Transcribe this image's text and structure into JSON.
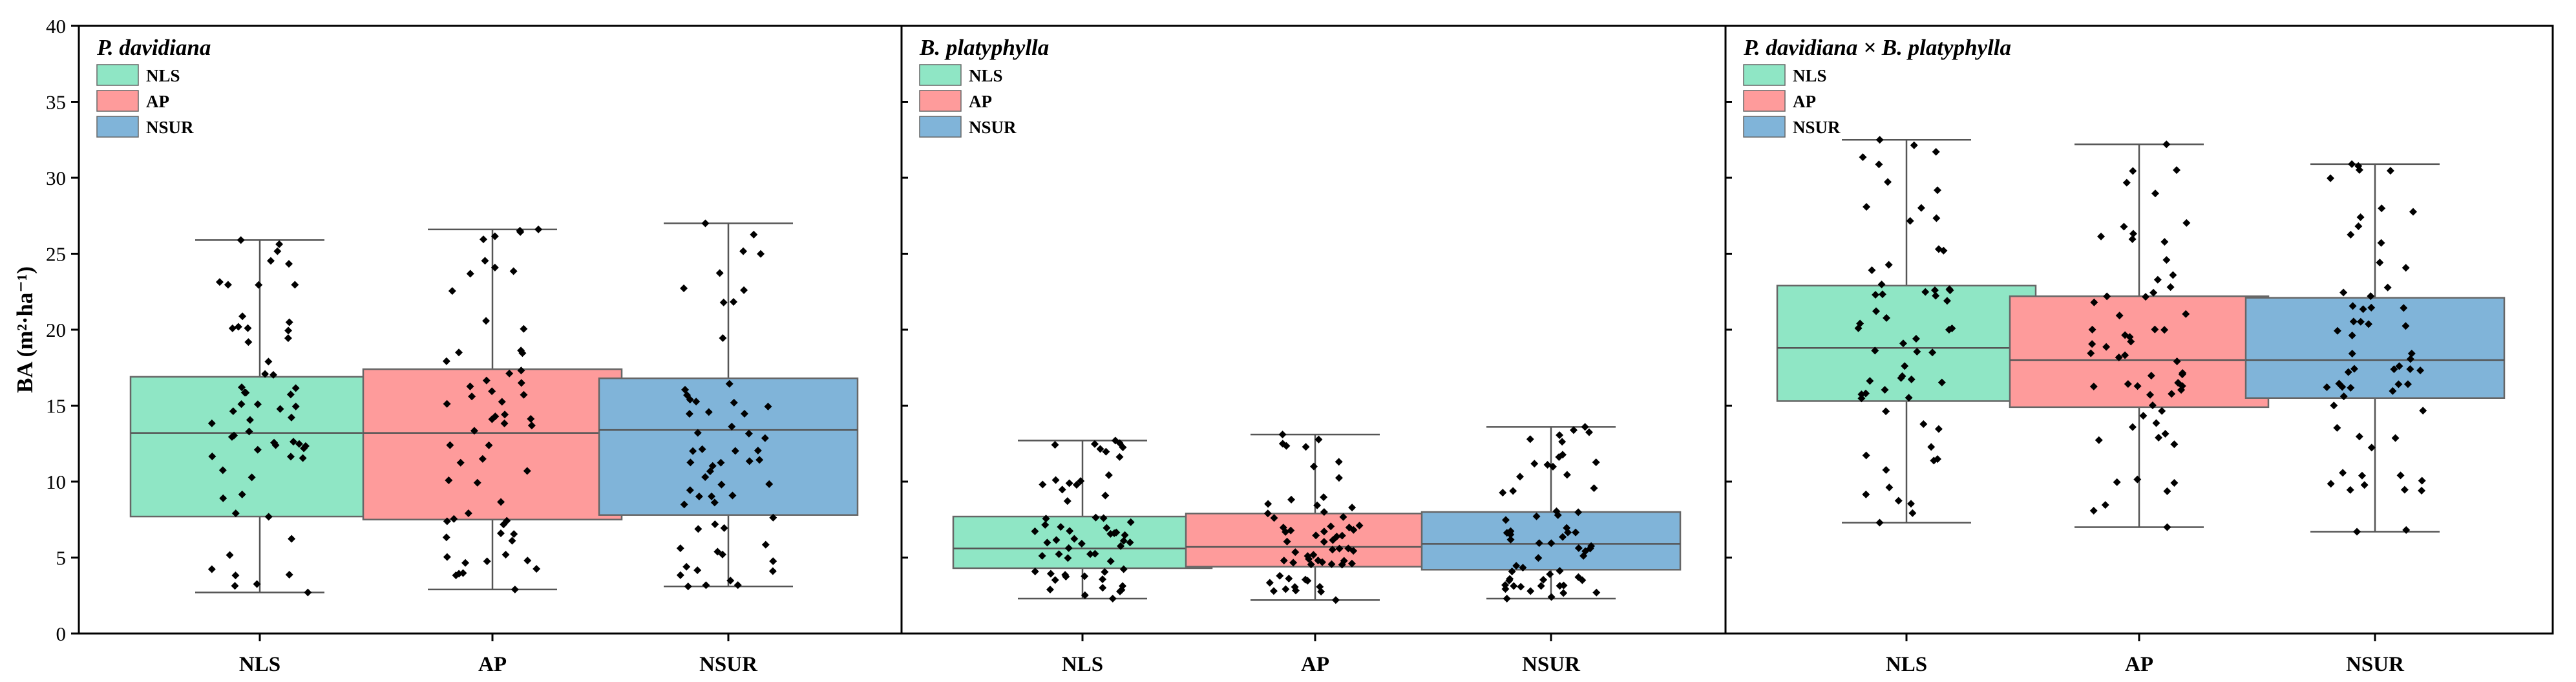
{
  "chart_data": {
    "type": "box",
    "ylabel": "BA (m²·ha⁻¹)",
    "ylim": [
      0,
      40
    ],
    "yticks": [
      0,
      5,
      10,
      15,
      20,
      25,
      30,
      35,
      40
    ],
    "categories": [
      "NLS",
      "AP",
      "NSUR"
    ],
    "legend": [
      {
        "name": "NLS",
        "color": "#8fe6c5"
      },
      {
        "name": "AP",
        "color": "#fe9b9b"
      },
      {
        "name": "NSUR",
        "color": "#80b4d9"
      }
    ],
    "panels": [
      {
        "title": "P. davidiana",
        "boxes": [
          {
            "category": "NLS",
            "min": 2.7,
            "q1": 7.7,
            "median": 13.2,
            "q3": 16.9,
            "max": 25.9
          },
          {
            "category": "AP",
            "min": 2.9,
            "q1": 7.5,
            "median": 13.2,
            "q3": 17.4,
            "max": 26.6
          },
          {
            "category": "NSUR",
            "min": 3.1,
            "q1": 7.8,
            "median": 13.4,
            "q3": 16.8,
            "max": 27.0
          }
        ]
      },
      {
        "title": "B. platyphylla",
        "boxes": [
          {
            "category": "NLS",
            "min": 2.3,
            "q1": 4.3,
            "median": 5.6,
            "q3": 7.7,
            "max": 12.7
          },
          {
            "category": "AP",
            "min": 2.2,
            "q1": 4.4,
            "median": 5.7,
            "q3": 7.9,
            "max": 13.1
          },
          {
            "category": "NSUR",
            "min": 2.3,
            "q1": 4.2,
            "median": 5.9,
            "q3": 8.0,
            "max": 13.6
          }
        ]
      },
      {
        "title": "P. davidiana × B. platyphylla",
        "boxes": [
          {
            "category": "NLS",
            "min": 7.3,
            "q1": 15.3,
            "median": 18.8,
            "q3": 22.9,
            "max": 32.5
          },
          {
            "category": "AP",
            "min": 7.0,
            "q1": 14.9,
            "median": 18.0,
            "q3": 22.2,
            "max": 32.2
          },
          {
            "category": "NSUR",
            "min": 6.7,
            "q1": 15.5,
            "median": 18.0,
            "q3": 22.1,
            "max": 30.9
          }
        ]
      }
    ],
    "jitter_points_per_box": 60
  }
}
